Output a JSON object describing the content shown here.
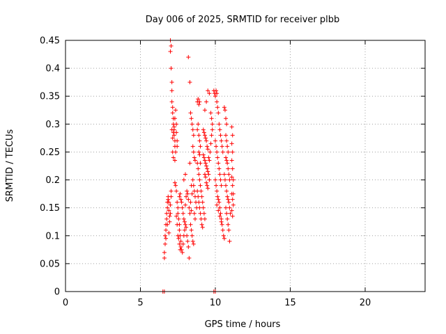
{
  "chart_data": {
    "type": "scatter",
    "title": "Day 006 of 2025, SRMTID for receiver plbb",
    "xlabel": "GPS time / hours",
    "ylabel": "SRMTID / TECUs",
    "xlim": [
      0,
      24
    ],
    "ylim": [
      0,
      0.45
    ],
    "xticks": [
      0,
      5,
      10,
      15,
      20
    ],
    "yticks": [
      0,
      0.05,
      0.1,
      0.15,
      0.2,
      0.25,
      0.3,
      0.35,
      0.4,
      0.45
    ],
    "xtick_labels": [
      "0",
      "5",
      "10",
      "15",
      "20"
    ],
    "ytick_labels": [
      "0",
      "0.05",
      "0.1",
      "0.15",
      "0.2",
      "0.25",
      "0.3",
      "0.35",
      "0.4",
      "0.45"
    ],
    "grid": true,
    "marker": "+",
    "color": "#ff0000",
    "series": [
      {
        "name": "SRMTID",
        "points": [
          [
            6.5,
            0.0
          ],
          [
            6.6,
            0.0
          ],
          [
            9.9,
            0.0
          ],
          [
            10.0,
            0.0
          ],
          [
            6.6,
            0.06
          ],
          [
            6.6,
            0.07
          ],
          [
            6.65,
            0.085
          ],
          [
            6.65,
            0.1
          ],
          [
            6.7,
            0.095
          ],
          [
            6.7,
            0.11
          ],
          [
            6.7,
            0.12
          ],
          [
            6.75,
            0.13
          ],
          [
            6.75,
            0.14
          ],
          [
            6.8,
            0.15
          ],
          [
            6.8,
            0.16
          ],
          [
            6.85,
            0.17
          ],
          [
            6.85,
            0.165
          ],
          [
            6.9,
            0.16
          ],
          [
            6.9,
            0.145
          ],
          [
            6.95,
            0.135
          ],
          [
            6.95,
            0.125
          ],
          [
            7.0,
            0.14
          ],
          [
            7.0,
            0.155
          ],
          [
            7.05,
            0.17
          ],
          [
            7.05,
            0.18
          ],
          [
            6.8,
            0.12
          ],
          [
            6.9,
            0.105
          ],
          [
            7.0,
            0.45
          ],
          [
            7.0,
            0.43
          ],
          [
            7.05,
            0.44
          ],
          [
            7.05,
            0.4
          ],
          [
            7.1,
            0.375
          ],
          [
            7.1,
            0.36
          ],
          [
            7.1,
            0.34
          ],
          [
            7.15,
            0.33
          ],
          [
            7.15,
            0.32
          ],
          [
            7.2,
            0.31
          ],
          [
            7.2,
            0.3
          ],
          [
            7.25,
            0.29
          ],
          [
            7.25,
            0.28
          ],
          [
            7.3,
            0.27
          ],
          [
            7.3,
            0.26
          ],
          [
            7.35,
            0.25
          ],
          [
            7.1,
            0.29
          ],
          [
            7.15,
            0.275
          ],
          [
            7.2,
            0.285
          ],
          [
            7.25,
            0.295
          ],
          [
            7.3,
            0.31
          ],
          [
            7.35,
            0.325
          ],
          [
            7.4,
            0.3
          ],
          [
            7.4,
            0.285
          ],
          [
            7.45,
            0.27
          ],
          [
            7.45,
            0.26
          ],
          [
            7.15,
            0.25
          ],
          [
            7.2,
            0.24
          ],
          [
            7.3,
            0.235
          ],
          [
            7.3,
            0.195
          ],
          [
            7.35,
            0.19
          ],
          [
            7.4,
            0.18
          ],
          [
            7.45,
            0.16
          ],
          [
            7.5,
            0.15
          ],
          [
            7.5,
            0.14
          ],
          [
            7.55,
            0.13
          ],
          [
            7.6,
            0.12
          ],
          [
            7.6,
            0.11
          ],
          [
            7.65,
            0.1
          ],
          [
            7.7,
            0.09
          ],
          [
            7.7,
            0.08
          ],
          [
            7.75,
            0.075
          ],
          [
            7.8,
            0.07
          ],
          [
            7.85,
            0.085
          ],
          [
            7.9,
            0.1
          ],
          [
            7.95,
            0.11
          ],
          [
            7.5,
            0.1
          ],
          [
            7.55,
            0.095
          ],
          [
            7.6,
            0.085
          ],
          [
            7.65,
            0.075
          ],
          [
            7.45,
            0.12
          ],
          [
            7.4,
            0.135
          ],
          [
            7.6,
            0.17
          ],
          [
            7.65,
            0.175
          ],
          [
            7.7,
            0.165
          ],
          [
            7.75,
            0.16
          ],
          [
            7.8,
            0.15
          ],
          [
            7.85,
            0.14
          ],
          [
            7.9,
            0.13
          ],
          [
            7.95,
            0.125
          ],
          [
            8.0,
            0.12
          ],
          [
            8.05,
            0.115
          ],
          [
            8.1,
            0.1
          ],
          [
            8.15,
            0.09
          ],
          [
            8.2,
            0.08
          ],
          [
            8.25,
            0.06
          ],
          [
            8.0,
            0.155
          ],
          [
            8.05,
            0.17
          ],
          [
            8.1,
            0.18
          ],
          [
            8.15,
            0.175
          ],
          [
            8.2,
            0.165
          ],
          [
            8.25,
            0.15
          ],
          [
            8.3,
            0.14
          ],
          [
            8.35,
            0.12
          ],
          [
            8.4,
            0.11
          ],
          [
            8.45,
            0.1
          ],
          [
            8.5,
            0.09
          ],
          [
            8.55,
            0.085
          ],
          [
            7.9,
            0.2
          ],
          [
            8.0,
            0.21
          ],
          [
            8.2,
            0.42
          ],
          [
            8.3,
            0.375
          ],
          [
            8.3,
            0.23
          ],
          [
            8.35,
            0.32
          ],
          [
            8.4,
            0.31
          ],
          [
            8.45,
            0.3
          ],
          [
            8.5,
            0.29
          ],
          [
            8.55,
            0.28
          ],
          [
            8.5,
            0.2
          ],
          [
            8.55,
            0.19
          ],
          [
            8.6,
            0.18
          ],
          [
            8.65,
            0.17
          ],
          [
            8.7,
            0.16
          ],
          [
            8.75,
            0.15
          ],
          [
            8.6,
            0.14
          ],
          [
            8.65,
            0.13
          ],
          [
            8.5,
            0.26
          ],
          [
            8.55,
            0.25
          ],
          [
            8.6,
            0.24
          ],
          [
            8.65,
            0.235
          ],
          [
            8.4,
            0.19
          ],
          [
            8.45,
            0.175
          ],
          [
            8.35,
            0.16
          ],
          [
            8.4,
            0.145
          ],
          [
            8.8,
            0.34
          ],
          [
            8.85,
            0.345
          ],
          [
            8.9,
            0.335
          ],
          [
            8.95,
            0.34
          ],
          [
            8.8,
            0.29
          ],
          [
            8.85,
            0.3
          ],
          [
            8.9,
            0.28
          ],
          [
            8.95,
            0.27
          ],
          [
            9.0,
            0.26
          ],
          [
            8.9,
            0.25
          ],
          [
            8.95,
            0.245
          ],
          [
            9.0,
            0.23
          ],
          [
            8.8,
            0.23
          ],
          [
            8.85,
            0.22
          ],
          [
            8.9,
            0.21
          ],
          [
            8.95,
            0.2
          ],
          [
            9.0,
            0.19
          ],
          [
            9.05,
            0.18
          ],
          [
            9.1,
            0.17
          ],
          [
            9.15,
            0.16
          ],
          [
            9.2,
            0.15
          ],
          [
            9.25,
            0.14
          ],
          [
            9.3,
            0.13
          ],
          [
            8.8,
            0.18
          ],
          [
            8.85,
            0.17
          ],
          [
            8.9,
            0.16
          ],
          [
            8.95,
            0.15
          ],
          [
            9.0,
            0.14
          ],
          [
            9.05,
            0.13
          ],
          [
            9.1,
            0.12
          ],
          [
            9.15,
            0.115
          ],
          [
            9.2,
            0.29
          ],
          [
            9.25,
            0.285
          ],
          [
            9.3,
            0.28
          ],
          [
            9.35,
            0.275
          ],
          [
            9.4,
            0.27
          ],
          [
            9.45,
            0.26
          ],
          [
            9.5,
            0.255
          ],
          [
            9.2,
            0.245
          ],
          [
            9.25,
            0.24
          ],
          [
            9.3,
            0.235
          ],
          [
            9.35,
            0.23
          ],
          [
            9.4,
            0.225
          ],
          [
            9.45,
            0.22
          ],
          [
            9.5,
            0.215
          ],
          [
            9.55,
            0.21
          ],
          [
            9.6,
            0.2
          ],
          [
            9.3,
            0.21
          ],
          [
            9.35,
            0.205
          ],
          [
            9.4,
            0.195
          ],
          [
            9.45,
            0.19
          ],
          [
            9.5,
            0.185
          ],
          [
            9.55,
            0.24
          ],
          [
            9.6,
            0.235
          ],
          [
            9.65,
            0.25
          ],
          [
            9.7,
            0.265
          ],
          [
            9.75,
            0.28
          ],
          [
            9.8,
            0.29
          ],
          [
            9.3,
            0.325
          ],
          [
            9.4,
            0.34
          ],
          [
            9.5,
            0.36
          ],
          [
            9.6,
            0.355
          ],
          [
            9.7,
            0.32
          ],
          [
            9.75,
            0.31
          ],
          [
            9.8,
            0.3
          ],
          [
            9.9,
            0.36
          ],
          [
            9.95,
            0.355
          ],
          [
            10.0,
            0.35
          ],
          [
            10.05,
            0.36
          ],
          [
            10.1,
            0.355
          ],
          [
            10.1,
            0.34
          ],
          [
            10.15,
            0.33
          ],
          [
            10.2,
            0.32
          ],
          [
            10.25,
            0.3
          ],
          [
            10.3,
            0.29
          ],
          [
            10.35,
            0.28
          ],
          [
            10.4,
            0.27
          ],
          [
            10.45,
            0.26
          ],
          [
            10.5,
            0.25
          ],
          [
            10.0,
            0.27
          ],
          [
            10.05,
            0.26
          ],
          [
            10.1,
            0.25
          ],
          [
            10.15,
            0.24
          ],
          [
            10.2,
            0.23
          ],
          [
            10.25,
            0.22
          ],
          [
            10.3,
            0.21
          ],
          [
            10.35,
            0.2
          ],
          [
            10.4,
            0.19
          ],
          [
            10.0,
            0.2
          ],
          [
            10.05,
            0.19
          ],
          [
            10.1,
            0.18
          ],
          [
            10.15,
            0.17
          ],
          [
            10.2,
            0.165
          ],
          [
            10.25,
            0.16
          ],
          [
            10.3,
            0.15
          ],
          [
            10.35,
            0.14
          ],
          [
            10.4,
            0.13
          ],
          [
            10.45,
            0.12
          ],
          [
            10.5,
            0.11
          ],
          [
            10.55,
            0.1
          ],
          [
            10.6,
            0.095
          ],
          [
            10.1,
            0.155
          ],
          [
            10.2,
            0.145
          ],
          [
            10.3,
            0.135
          ],
          [
            10.4,
            0.125
          ],
          [
            10.6,
            0.33
          ],
          [
            10.65,
            0.325
          ],
          [
            10.7,
            0.31
          ],
          [
            10.75,
            0.3
          ],
          [
            10.7,
            0.28
          ],
          [
            10.75,
            0.27
          ],
          [
            10.8,
            0.26
          ],
          [
            10.85,
            0.25
          ],
          [
            10.7,
            0.24
          ],
          [
            10.75,
            0.235
          ],
          [
            10.8,
            0.23
          ],
          [
            10.85,
            0.22
          ],
          [
            10.9,
            0.21
          ],
          [
            10.95,
            0.2
          ],
          [
            10.6,
            0.21
          ],
          [
            10.65,
            0.2
          ],
          [
            10.7,
            0.19
          ],
          [
            10.75,
            0.18
          ],
          [
            10.8,
            0.17
          ],
          [
            10.85,
            0.165
          ],
          [
            10.9,
            0.16
          ],
          [
            10.95,
            0.15
          ],
          [
            11.0,
            0.14
          ],
          [
            10.8,
            0.13
          ],
          [
            10.85,
            0.12
          ],
          [
            10.9,
            0.11
          ],
          [
            10.95,
            0.09
          ],
          [
            10.7,
            0.15
          ],
          [
            10.75,
            0.14
          ],
          [
            11.1,
            0.295
          ],
          [
            11.15,
            0.28
          ],
          [
            11.1,
            0.265
          ],
          [
            11.15,
            0.25
          ],
          [
            11.1,
            0.235
          ],
          [
            11.15,
            0.22
          ],
          [
            11.1,
            0.205
          ],
          [
            11.15,
            0.19
          ],
          [
            11.1,
            0.175
          ],
          [
            11.15,
            0.165
          ],
          [
            11.2,
            0.155
          ],
          [
            11.1,
            0.145
          ],
          [
            11.15,
            0.135
          ],
          [
            11.2,
            0.175
          ],
          [
            11.2,
            0.2
          ]
        ]
      }
    ]
  }
}
